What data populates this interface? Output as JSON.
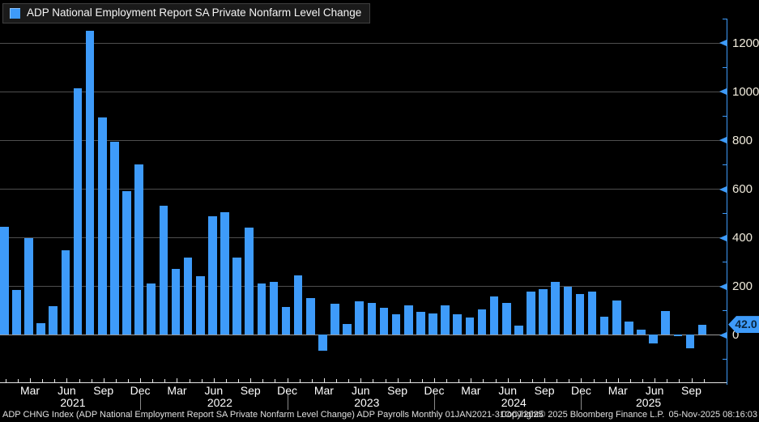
{
  "legend": {
    "label": "ADP National Employment Report SA Private Nonfarm Level Change"
  },
  "colors": {
    "background": "#000000",
    "bar": "#3E9BFA",
    "axis": "#3E9BFA",
    "grid": "#4e4e4e",
    "zero_line": "#9a9a9a",
    "x_axis_line": "#e6e6e6",
    "y_label": "#f0ebdc",
    "x_label": "#ffffff",
    "tag_background": "#3E9BFA",
    "tag_text": "#0b2740"
  },
  "y_axis": {
    "major_ticks": [
      0,
      200,
      400,
      600,
      800,
      1000,
      1200
    ],
    "minor_ticks": [
      -100,
      100,
      300,
      500,
      700,
      900,
      1100,
      1300
    ],
    "last_value_label": "42.0"
  },
  "x_axis": {
    "quarter_label_names": [
      "Mar",
      "Jun",
      "Sep",
      "Dec"
    ],
    "years": [
      "2021",
      "2022",
      "2023",
      "2024",
      "2025"
    ]
  },
  "footer": {
    "left": "ADP CHNG Index (ADP National Employment Report SA Private Nonfarm Level Change) ADP Payrolls Monthly 01JAN2021-31OCT2025",
    "copyright": "Copyright© 2025 Bloomberg Finance L.P.",
    "datetime": "05-Nov-2025 08:16:03"
  },
  "chart_data": {
    "type": "bar",
    "title": "ADP National Employment Report SA Private Nonfarm Level Change",
    "xlabel": "",
    "ylabel": "",
    "ylim": [
      -190,
      1290
    ],
    "grid": true,
    "legend_position": "top-left",
    "last_value": 42.0,
    "x": [
      "Jan 2021",
      "Feb 2021",
      "Mar 2021",
      "Apr 2021",
      "May 2021",
      "Jun 2021",
      "Jul 2021",
      "Aug 2021",
      "Sep 2021",
      "Oct 2021",
      "Nov 2021",
      "Dec 2021",
      "Jan 2022",
      "Feb 2022",
      "Mar 2022",
      "Apr 2022",
      "May 2022",
      "Jun 2022",
      "Jul 2022",
      "Aug 2022",
      "Sep 2022",
      "Oct 2022",
      "Nov 2022",
      "Dec 2022",
      "Jan 2023",
      "Feb 2023",
      "Mar 2023",
      "Apr 2023",
      "May 2023",
      "Jun 2023",
      "Jul 2023",
      "Aug 2023",
      "Sep 2023",
      "Oct 2023",
      "Nov 2023",
      "Dec 2023",
      "Jan 2024",
      "Feb 2024",
      "Mar 2024",
      "Apr 2024",
      "May 2024",
      "Jun 2024",
      "Jul 2024",
      "Aug 2024",
      "Sep 2024",
      "Oct 2024",
      "Nov 2024",
      "Dec 2024",
      "Jan 2025",
      "Feb 2025",
      "Mar 2025",
      "Apr 2025",
      "May 2025",
      "Jun 2025",
      "Jul 2025",
      "Aug 2025",
      "Sep 2025",
      "Oct 2025"
    ],
    "values": [
      445,
      185,
      398,
      47,
      117,
      347,
      1013,
      1250,
      893,
      793,
      591,
      700,
      211,
      530,
      272,
      317,
      239,
      486,
      502,
      316,
      441,
      212,
      216,
      115,
      243,
      152,
      -66,
      126,
      43,
      138,
      131,
      111,
      85,
      122,
      95,
      88,
      120,
      85,
      72,
      103,
      158,
      130,
      37,
      177,
      188,
      216,
      199,
      168,
      179,
      75,
      141,
      55,
      22,
      -37,
      99,
      -5,
      -54,
      42
    ]
  }
}
